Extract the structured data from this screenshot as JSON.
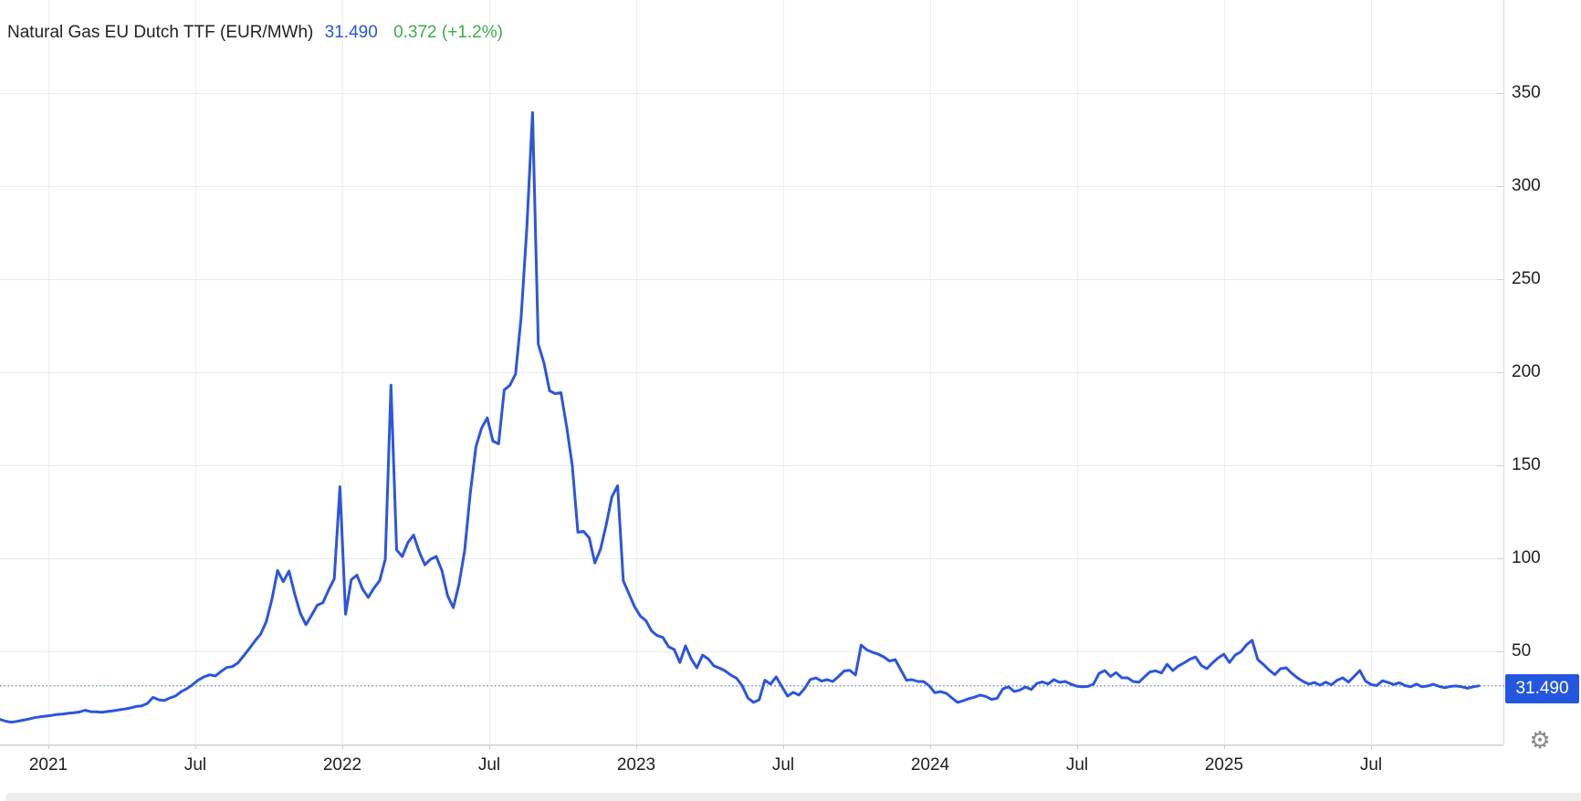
{
  "header": {
    "title": "Natural Gas EU Dutch TTF (EUR/MWh)",
    "last_price": "31.490",
    "change": "0.372 (+1.2%)"
  },
  "colors": {
    "line": "#2d55dc",
    "badge": "#2457e0",
    "price_text": "#2b55d8",
    "change_text": "#3bae4a",
    "grid_h": "#eaeaea",
    "grid_v": "#f0f0f0",
    "axis": "#cfcfcf",
    "dotted_price_line": "#7f95ba"
  },
  "icons": {
    "settings": "gear-icon",
    "settings_glyph": "⚙"
  },
  "badge_label": "31.490",
  "chart_data": {
    "type": "line",
    "title": "Natural Gas EU Dutch TTF (EUR/MWh)",
    "ylabel": "EUR/MWh",
    "ylim": [
      0,
      380
    ],
    "grid": true,
    "legend": "none",
    "y_ticks": [
      350,
      300,
      250,
      200,
      150,
      100,
      50
    ],
    "x_ticks": [
      "2021",
      "Jul",
      "2022",
      "Jul",
      "2023",
      "Jul",
      "2024",
      "Jul",
      "2025",
      "Jul"
    ],
    "x_range": "Nov 2020 - Nov 2025, weekly points",
    "current_price": 31.49,
    "current_price_label": "31.490",
    "values": [
      13.5,
      12.5,
      11.9,
      12.4,
      13,
      13.6,
      14.3,
      14.8,
      15.2,
      15.6,
      16.1,
      16.3,
      16.7,
      17,
      17.4,
      18.4,
      17.6,
      17.5,
      17.3,
      17.7,
      18.1,
      18.6,
      19,
      19.6,
      20.4,
      20.7,
      22,
      25.3,
      24,
      23.6,
      25,
      26.1,
      28.4,
      30,
      32.1,
      34.6,
      36.3,
      37.4,
      36.8,
      39.2,
      41.3,
      41.8,
      43.8,
      47.6,
      51.5,
      55.6,
      59.2,
      66,
      78,
      93.5,
      87.4,
      93.2,
      81,
      70.5,
      64.3,
      69.5,
      74.8,
      76.2,
      83,
      89,
      138.5,
      70,
      88.5,
      91,
      83.5,
      79,
      84,
      88,
      99.5,
      193,
      104.5,
      101,
      108.5,
      112.5,
      103.5,
      96.5,
      99.5,
      101,
      93.5,
      80,
      73.5,
      86,
      104,
      135,
      160,
      170,
      175.5,
      163,
      161.5,
      190.5,
      193,
      199,
      230,
      278,
      339.5,
      215,
      205,
      190,
      188.5,
      189,
      171,
      150,
      114,
      114.5,
      111,
      97.5,
      105,
      118,
      133,
      139,
      88,
      81,
      74,
      69,
      66.5,
      61,
      58.5,
      57.5,
      52.5,
      51,
      44,
      53,
      46,
      41.2,
      48,
      46,
      42.2,
      41,
      39.5,
      37.2,
      35.6,
      31.5,
      25,
      22.6,
      24,
      34.5,
      32.4,
      36.3,
      31,
      26,
      28,
      26.5,
      30,
      34.8,
      35.8,
      34,
      34.8,
      33.8,
      36.5,
      39.5,
      39.8,
      37.3,
      53.4,
      50.8,
      49.5,
      48.5,
      47,
      44.8,
      45.6,
      40,
      34.5,
      34.8,
      33.8,
      33.8,
      31.5,
      27.8,
      28.4,
      27.5,
      25,
      22.6,
      23.5,
      24.6,
      25.4,
      26.5,
      25.8,
      24.2,
      24.8,
      29.8,
      31,
      28.5,
      29.2,
      30.9,
      29.5,
      32.8,
      33.6,
      32.5,
      34.8,
      33.4,
      33.8,
      32.4,
      31.3,
      31,
      31.2,
      32.4,
      38.2,
      39.7,
      36.5,
      38.6,
      35.8,
      35.8,
      33.8,
      33.4,
      36.3,
      39,
      39.5,
      38.4,
      43.1,
      39.7,
      42.2,
      43.8,
      45.8,
      47,
      42.5,
      40.7,
      43.8,
      46.5,
      48.5,
      44,
      48,
      49.8,
      53.5,
      56,
      45.6,
      43,
      40,
      37.5,
      40.7,
      41.2,
      38.2,
      35.8,
      33.8,
      32.4,
      33.3,
      31.8,
      33.5,
      32,
      34.5,
      35.8,
      33.5,
      36.5,
      39.7,
      34,
      32.2,
      31.6,
      34.2,
      33.3,
      32.2,
      33.2,
      31.6,
      31,
      32.4,
      31,
      31.4,
      32.3,
      31.2,
      30.5,
      31.2,
      31.4,
      31,
      30.2,
      31,
      31.49
    ]
  }
}
